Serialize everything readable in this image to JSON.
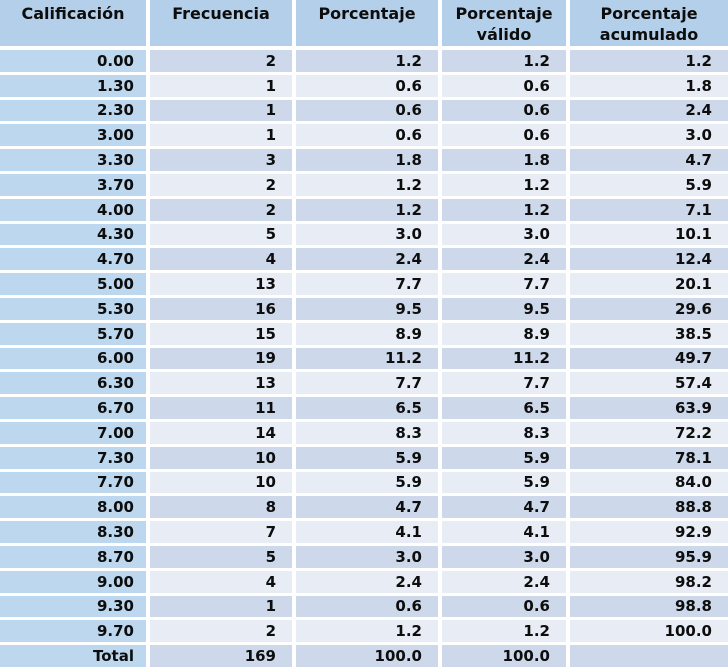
{
  "chart_data": {
    "type": "table",
    "title": "",
    "columns": [
      "Calificación",
      "Frecuencia",
      "Porcentaje",
      "Porcentaje válido",
      "Porcentaje acumulado"
    ],
    "rows": [
      [
        "0.00",
        "2",
        "1.2",
        "1.2",
        "1.2"
      ],
      [
        "1.30",
        "1",
        "0.6",
        "0.6",
        "1.8"
      ],
      [
        "2.30",
        "1",
        "0.6",
        "0.6",
        "2.4"
      ],
      [
        "3.00",
        "1",
        "0.6",
        "0.6",
        "3.0"
      ],
      [
        "3.30",
        "3",
        "1.8",
        "1.8",
        "4.7"
      ],
      [
        "3.70",
        "2",
        "1.2",
        "1.2",
        "5.9"
      ],
      [
        "4.00",
        "2",
        "1.2",
        "1.2",
        "7.1"
      ],
      [
        "4.30",
        "5",
        "3.0",
        "3.0",
        "10.1"
      ],
      [
        "4.70",
        "4",
        "2.4",
        "2.4",
        "12.4"
      ],
      [
        "5.00",
        "13",
        "7.7",
        "7.7",
        "20.1"
      ],
      [
        "5.30",
        "16",
        "9.5",
        "9.5",
        "29.6"
      ],
      [
        "5.70",
        "15",
        "8.9",
        "8.9",
        "38.5"
      ],
      [
        "6.00",
        "19",
        "11.2",
        "11.2",
        "49.7"
      ],
      [
        "6.30",
        "13",
        "7.7",
        "7.7",
        "57.4"
      ],
      [
        "6.70",
        "11",
        "6.5",
        "6.5",
        "63.9"
      ],
      [
        "7.00",
        "14",
        "8.3",
        "8.3",
        "72.2"
      ],
      [
        "7.30",
        "10",
        "5.9",
        "5.9",
        "78.1"
      ],
      [
        "7.70",
        "10",
        "5.9",
        "5.9",
        "84.0"
      ],
      [
        "8.00",
        "8",
        "4.7",
        "4.7",
        "88.8"
      ],
      [
        "8.30",
        "7",
        "4.1",
        "4.1",
        "92.9"
      ],
      [
        "8.70",
        "5",
        "3.0",
        "3.0",
        "95.9"
      ],
      [
        "9.00",
        "4",
        "2.4",
        "2.4",
        "98.2"
      ],
      [
        "9.30",
        "1",
        "0.6",
        "0.6",
        "98.8"
      ],
      [
        "9.70",
        "2",
        "1.2",
        "1.2",
        "100.0"
      ],
      [
        "Total",
        "169",
        "100.0",
        "100.0",
        ""
      ]
    ],
    "layout_hints": {
      "grid": "white gaps between cells",
      "banding": "odd rows darker, first column constant blue",
      "alignment": "values right-aligned, headers centered"
    }
  },
  "colors": {
    "header_bg": "#b4cfe9",
    "first_column_bg": "#bdd7ee",
    "row_odd_bg": "#cdd9ea",
    "row_even_bg": "#e7ecf5",
    "separator": "#ffffff",
    "text": "#0d0d0d"
  }
}
